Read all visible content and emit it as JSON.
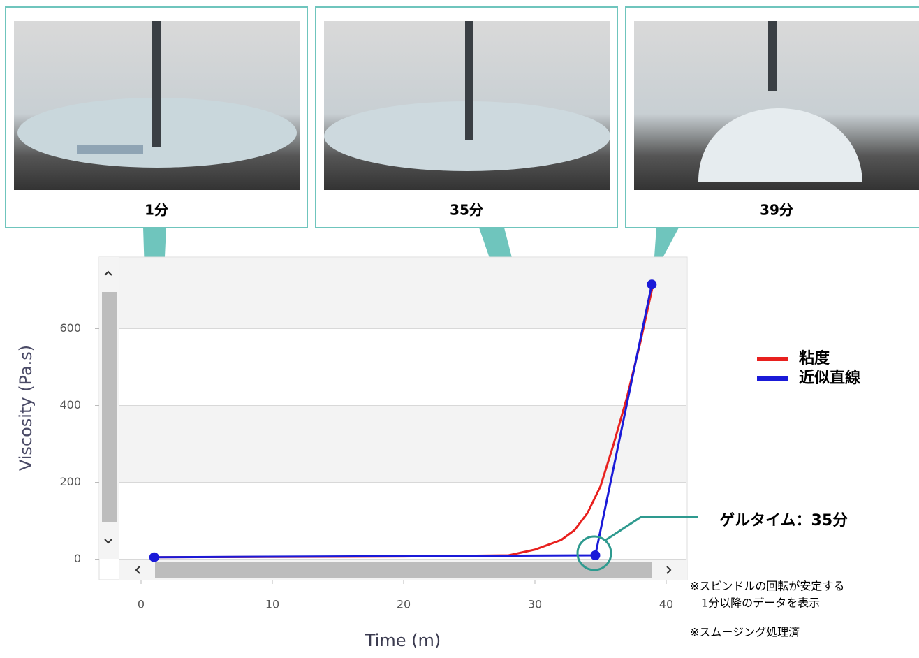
{
  "photos": [
    {
      "caption": "1分"
    },
    {
      "caption": "35分"
    },
    {
      "caption": "39分"
    }
  ],
  "chart_data": {
    "type": "line",
    "x_label": "Time (m)",
    "y_label": "Viscosity (Pa.s)",
    "xlim": [
      -2,
      41.5
    ],
    "ylim": [
      -50,
      785
    ],
    "xticks": [
      0,
      10,
      20,
      30,
      40
    ],
    "yticks": [
      0,
      200,
      400,
      600
    ],
    "grid": true,
    "legend": "right",
    "series": [
      {
        "name": "粘度",
        "color": "#e8201e",
        "x": [
          1,
          10,
          20,
          28,
          30,
          32,
          33,
          34,
          35,
          36,
          37,
          38,
          39
        ],
        "values": [
          5,
          6,
          7,
          10,
          25,
          50,
          75,
          120,
          190,
          300,
          420,
          560,
          715
        ]
      },
      {
        "name": "近似直線",
        "color": "#1a1ad8",
        "markers": true,
        "x": [
          1,
          34.6,
          38.9
        ],
        "values": [
          5,
          10,
          715
        ]
      }
    ],
    "annotation": "ゲルタイム：35分",
    "notes": [
      "※スピンドルの回転が安定する",
      "1分以降のデータを表示",
      "※スムージング処理済"
    ]
  }
}
